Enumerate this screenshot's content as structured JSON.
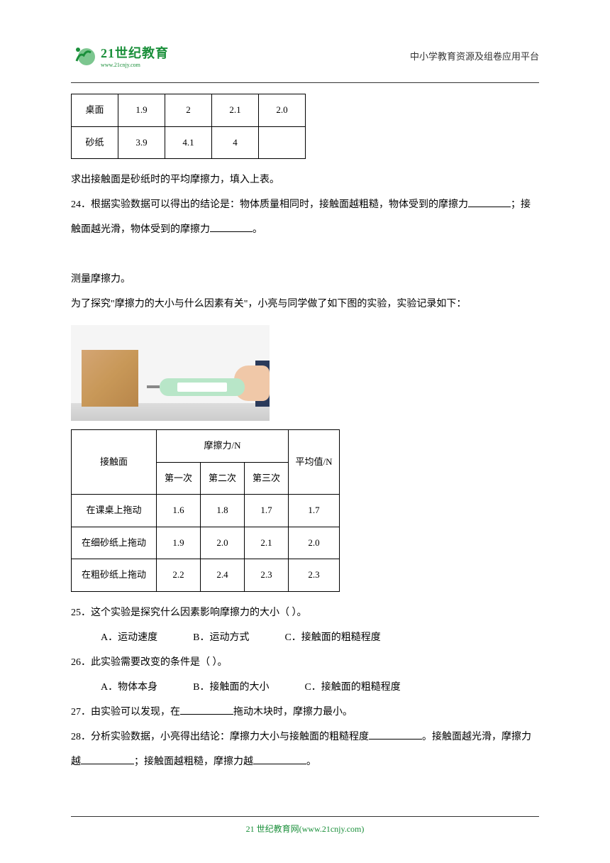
{
  "header": {
    "logo_main": "21世纪教育",
    "logo_url": "www.21cnjy.com",
    "right_text": "中小学教育资源及组卷应用平台"
  },
  "table1": {
    "rows": [
      [
        "桌面",
        "1.9",
        "2",
        "2.1",
        "2.0"
      ],
      [
        "砂纸",
        "3.9",
        "4.1",
        "4",
        ""
      ]
    ]
  },
  "text1": "求出接触面是砂纸时的平均摩擦力，填入上表。",
  "q24_prefix": "24．根据实验数据可以得出的结论是：物体质量相同时，接触面越粗糙，物体受到的摩擦力",
  "q24_mid": "；接触面越光滑，物体受到的摩擦力",
  "q24_end": "。",
  "section_title": "测量摩擦力。",
  "section_intro": "为了探究\"摩擦力的大小与什么因素有关\"，小亮与同学做了如下图的实验，实验记录如下：",
  "table2": {
    "header_surface": "接触面",
    "header_friction": "摩擦力/N",
    "header_avg": "平均值/N",
    "trial_labels": [
      "第一次",
      "第二次",
      "第三次"
    ],
    "rows": [
      {
        "surface": "在课桌上拖动",
        "values": [
          "1.6",
          "1.8",
          "1.7"
        ],
        "avg": "1.7"
      },
      {
        "surface": "在细砂纸上拖动",
        "values": [
          "1.9",
          "2.0",
          "2.1"
        ],
        "avg": "2.0"
      },
      {
        "surface": "在粗砂纸上拖动",
        "values": [
          "2.2",
          "2.4",
          "2.3"
        ],
        "avg": "2.3"
      }
    ]
  },
  "q25": {
    "text": "25．这个实验是探究什么因素影响摩擦力的大小（    ）。",
    "opts": [
      "A．运动速度",
      "B．运动方式",
      "C．接触面的粗糙程度"
    ]
  },
  "q26": {
    "text": "26．此实验需要改变的条件是（    ）。",
    "opts": [
      "A．物体本身",
      "B．接触面的大小",
      "C．接触面的粗糙程度"
    ]
  },
  "q27_prefix": "27．由实验可以发现，在",
  "q27_suffix": "拖动木块时，摩擦力最小。",
  "q28_prefix": "28．分析实验数据，小亮得出结论：摩擦力大小与接触面的粗糙程度",
  "q28_mid1": "。接触面越光滑，摩擦力越",
  "q28_mid2": "；接触面越粗糙，摩擦力越",
  "q28_end": "。",
  "footer": "21 世纪教育网(www.21cnjy.com)",
  "colors": {
    "green": "#1a8f3a",
    "text": "#000000",
    "border": "#000000"
  }
}
